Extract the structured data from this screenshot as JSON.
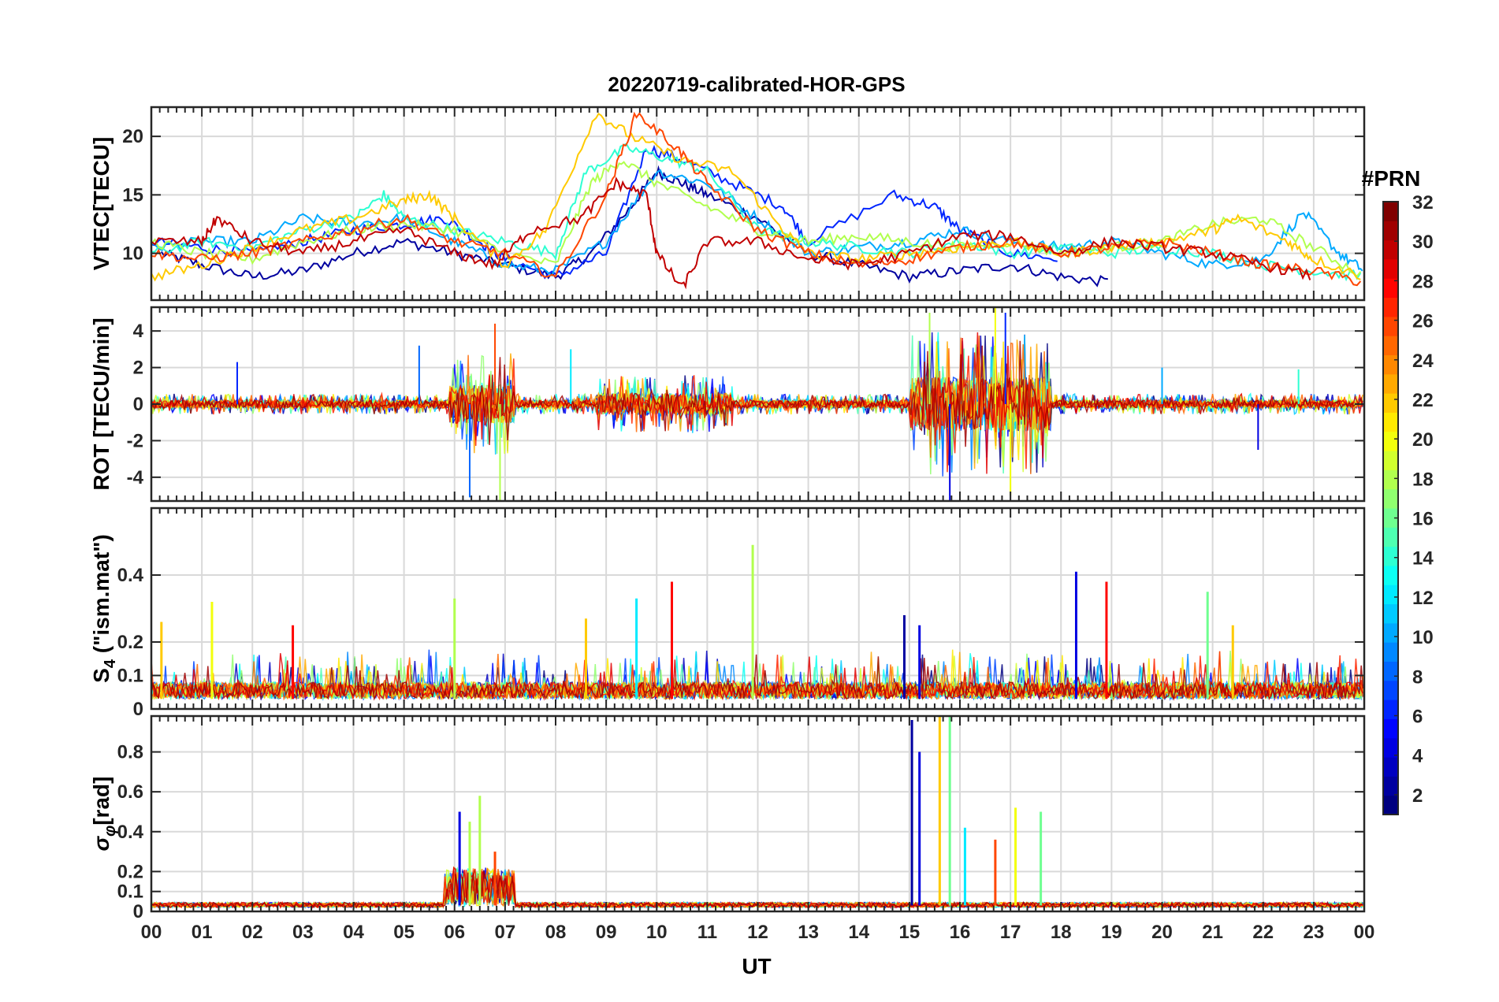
{
  "chart_data": {
    "type": "line",
    "title": "20220719-calibrated-HOR-GPS",
    "xlabel": "UT",
    "x_tick_labels": [
      "00",
      "01",
      "02",
      "03",
      "04",
      "05",
      "06",
      "07",
      "08",
      "09",
      "10",
      "11",
      "12",
      "13",
      "14",
      "15",
      "16",
      "17",
      "18",
      "19",
      "20",
      "21",
      "22",
      "23",
      "00"
    ],
    "xlim_hours": [
      0,
      24
    ],
    "grid": true,
    "colorbar": {
      "title": "#PRN",
      "range": [
        1,
        32
      ],
      "ticks": [
        "2",
        "4",
        "6",
        "8",
        "10",
        "12",
        "14",
        "16",
        "18",
        "20",
        "22",
        "24",
        "26",
        "28",
        "30",
        "32"
      ],
      "colormap": "jet"
    },
    "panels": [
      {
        "name": "vtec",
        "ylabel": "VTEC[TECU]",
        "ylim": [
          6,
          22.5
        ],
        "yticks": [
          "10",
          "15",
          "20"
        ],
        "series": [
          {
            "prn": 2,
            "x": [
              0.2,
              1,
              2,
              3,
              4,
              5,
              6,
              7,
              8,
              8.7,
              9.5,
              10,
              10.5,
              11,
              12,
              13,
              14,
              15,
              16,
              17,
              18,
              19
            ],
            "y": [
              10,
              9,
              8,
              8.5,
              10,
              11,
              10,
              9,
              8,
              10,
              14,
              17,
              16,
              15,
              13,
              10,
              9,
              8,
              8.5,
              9,
              8,
              7.5
            ]
          },
          {
            "prn": 6,
            "x": [
              0,
              1,
              2,
              3,
              4,
              5,
              5.8,
              6.5,
              7,
              8,
              9,
              9.8,
              10.5,
              11.5,
              12.5,
              13,
              14.7,
              15.5,
              16,
              17,
              18
            ],
            "y": [
              11,
              10.5,
              10,
              11,
              12,
              12.5,
              13,
              11,
              9.5,
              8,
              10,
              19,
              18,
              16,
              14,
              11,
              15,
              14,
              12,
              10,
              9.5
            ]
          },
          {
            "prn": 10,
            "x": [
              0,
              1,
              2,
              3,
              4,
              5,
              6,
              7,
              8,
              9,
              10,
              11,
              12,
              13,
              14,
              15,
              16,
              17,
              18,
              19,
              20,
              21,
              22,
              22.8,
              23.5,
              24
            ],
            "y": [
              10.5,
              11,
              11,
              13,
              12.5,
              13,
              11,
              9,
              8.5,
              11,
              17,
              16,
              13,
              10,
              10.5,
              11,
              12,
              11,
              10.5,
              11,
              10,
              9,
              9.5,
              13.5,
              10,
              8.5
            ]
          },
          {
            "prn": 14,
            "x": [
              0,
              1,
              2,
              3,
              4,
              4.6,
              5,
              6,
              7,
              8,
              8.6,
              9.4,
              10.3,
              11,
              12,
              13,
              14,
              15,
              16,
              17,
              18,
              19,
              20,
              21,
              22,
              23,
              24
            ],
            "y": [
              10,
              11,
              10.5,
              12,
              13,
              15,
              13,
              12,
              11,
              10,
              17,
              19,
              18,
              17,
              12,
              11,
              10.5,
              10,
              11,
              10,
              10.5,
              10,
              10.5,
              10,
              9,
              8.5,
              8
            ]
          },
          {
            "prn": 18,
            "x": [
              0,
              1,
              2,
              3,
              4,
              5,
              6,
              7,
              8,
              8.7,
              9.3,
              10,
              11,
              12,
              13,
              14,
              15,
              16,
              17,
              18,
              19,
              20,
              21,
              22,
              23,
              24
            ],
            "y": [
              11,
              10,
              9.5,
              11,
              12,
              12.5,
              12,
              10,
              9,
              16,
              18,
              16,
              14,
              12,
              11,
              11.5,
              11,
              10.5,
              11,
              10,
              10.5,
              11,
              12.5,
              13,
              10.5,
              8
            ]
          },
          {
            "prn": 22,
            "x": [
              0,
              1,
              2,
              3,
              4,
              5,
              5.5,
              6,
              7,
              7.8,
              8.8,
              9.5,
              10.5,
              11.5,
              12.5,
              13,
              14,
              15,
              16,
              17,
              18,
              19,
              20,
              21,
              21.5,
              22.5,
              23,
              24
            ],
            "y": [
              8,
              9,
              10.5,
              12,
              13,
              14.5,
              15,
              13,
              9,
              12,
              22,
              20,
              18,
              17,
              12,
              10,
              9.5,
              10,
              10.5,
              11,
              10,
              10.5,
              11,
              12,
              13,
              11,
              9.5,
              8
            ]
          },
          {
            "prn": 26,
            "x": [
              0,
              1,
              2,
              3,
              4,
              5,
              6,
              7,
              8,
              9,
              9.6,
              10.4,
              11,
              12,
              13,
              14,
              15,
              16,
              17,
              18,
              19,
              20,
              21,
              22,
              23,
              24
            ],
            "y": [
              10,
              9.5,
              10,
              11,
              12,
              13,
              11,
              10,
              8,
              15,
              22,
              19,
              16,
              12,
              10,
              9,
              9.5,
              10.5,
              11,
              10,
              10.5,
              11,
              10,
              9,
              8.5,
              7.5
            ]
          },
          {
            "prn": 30,
            "x": [
              0,
              1,
              1.3,
              2,
              3,
              4,
              5,
              6,
              6.8,
              7.5,
              8.5,
              9.2,
              9.8,
              10,
              10.5,
              11,
              12,
              13,
              14,
              15,
              16,
              17,
              18,
              19,
              20,
              21,
              22,
              23
            ],
            "y": [
              11,
              11,
              13,
              11,
              10,
              11,
              12,
              10,
              9,
              12,
              13,
              16,
              15,
              10,
              7,
              11,
              11,
              9.5,
              9,
              10,
              11.5,
              11.5,
              10,
              11,
              10.5,
              10,
              9,
              8
            ]
          }
        ]
      },
      {
        "name": "rot",
        "ylabel": "ROT [TECU/min]",
        "ylim": [
          -5.3,
          5.3
        ],
        "yticks": [
          "-4",
          "-2",
          "0",
          "2",
          "4"
        ],
        "burst_windows": [
          {
            "x0": 5.9,
            "x1": 7.2,
            "amp": 3.2
          },
          {
            "x0": 8.8,
            "x1": 11.5,
            "amp": 1.8
          },
          {
            "x0": 15.0,
            "x1": 17.8,
            "amp": 4.5
          }
        ],
        "spikes": [
          {
            "x": 1.7,
            "y": 2.3,
            "prn": 6
          },
          {
            "x": 5.3,
            "y": 3.2,
            "prn": 8
          },
          {
            "x": 6.3,
            "y": -5.1,
            "prn": 8
          },
          {
            "x": 6.8,
            "y": 4.4,
            "prn": 26
          },
          {
            "x": 6.9,
            "y": -5.3,
            "prn": 18
          },
          {
            "x": 8.3,
            "y": 3.0,
            "prn": 12
          },
          {
            "x": 15.4,
            "y": 5.0,
            "prn": 18
          },
          {
            "x": 15.8,
            "y": -5.3,
            "prn": 4
          },
          {
            "x": 16.7,
            "y": 5.3,
            "prn": 20
          },
          {
            "x": 16.9,
            "y": 5.0,
            "prn": 6
          },
          {
            "x": 17.0,
            "y": -5.0,
            "prn": 20
          },
          {
            "x": 20.0,
            "y": 2.0,
            "prn": 10
          },
          {
            "x": 21.9,
            "y": -2.5,
            "prn": 4
          },
          {
            "x": 22.7,
            "y": 1.9,
            "prn": 14
          }
        ]
      },
      {
        "name": "s4",
        "ylabel": "S4 (\"ism.mat\")",
        "ylabel_main": "S",
        "ylabel_sub": "4",
        "ylabel_rest": " (\"ism.mat\")",
        "ylim": [
          0,
          0.6
        ],
        "yticks": [
          "0",
          "0.1",
          "0.2",
          "0.4"
        ],
        "peaks": [
          {
            "x": 0.2,
            "y": 0.26,
            "prn": 22
          },
          {
            "x": 1.2,
            "y": 0.32,
            "prn": 20
          },
          {
            "x": 2.8,
            "y": 0.25,
            "prn": 28
          },
          {
            "x": 6.0,
            "y": 0.33,
            "prn": 18
          },
          {
            "x": 8.6,
            "y": 0.27,
            "prn": 22
          },
          {
            "x": 9.6,
            "y": 0.33,
            "prn": 12
          },
          {
            "x": 10.3,
            "y": 0.38,
            "prn": 28
          },
          {
            "x": 11.9,
            "y": 0.49,
            "prn": 18
          },
          {
            "x": 14.9,
            "y": 0.28,
            "prn": 2
          },
          {
            "x": 15.2,
            "y": 0.25,
            "prn": 4
          },
          {
            "x": 18.3,
            "y": 0.41,
            "prn": 4
          },
          {
            "x": 18.9,
            "y": 0.38,
            "prn": 28
          },
          {
            "x": 20.9,
            "y": 0.35,
            "prn": 16
          },
          {
            "x": 21.4,
            "y": 0.25,
            "prn": 22
          }
        ]
      },
      {
        "name": "sigma_phi",
        "ylabel": "σφ[rad]",
        "ylabel_main": "σ",
        "ylabel_sub": "φ",
        "ylabel_rest": "[rad]",
        "ylim": [
          0,
          0.98
        ],
        "yticks": [
          "0",
          "0.1",
          "0.2",
          "0.4",
          "0.6",
          "0.8"
        ],
        "peaks": [
          {
            "x": 6.1,
            "y": 0.5,
            "prn": 4
          },
          {
            "x": 6.3,
            "y": 0.45,
            "prn": 18
          },
          {
            "x": 6.5,
            "y": 0.58,
            "prn": 18
          },
          {
            "x": 6.8,
            "y": 0.3,
            "prn": 26
          },
          {
            "x": 15.05,
            "y": 0.96,
            "prn": 2
          },
          {
            "x": 15.2,
            "y": 0.8,
            "prn": 4
          },
          {
            "x": 15.6,
            "y": 0.98,
            "prn": 22
          },
          {
            "x": 15.8,
            "y": 0.98,
            "prn": 16
          },
          {
            "x": 16.1,
            "y": 0.42,
            "prn": 12
          },
          {
            "x": 16.7,
            "y": 0.36,
            "prn": 26
          },
          {
            "x": 17.1,
            "y": 0.52,
            "prn": 20
          },
          {
            "x": 17.6,
            "y": 0.5,
            "prn": 16
          }
        ]
      }
    ]
  }
}
